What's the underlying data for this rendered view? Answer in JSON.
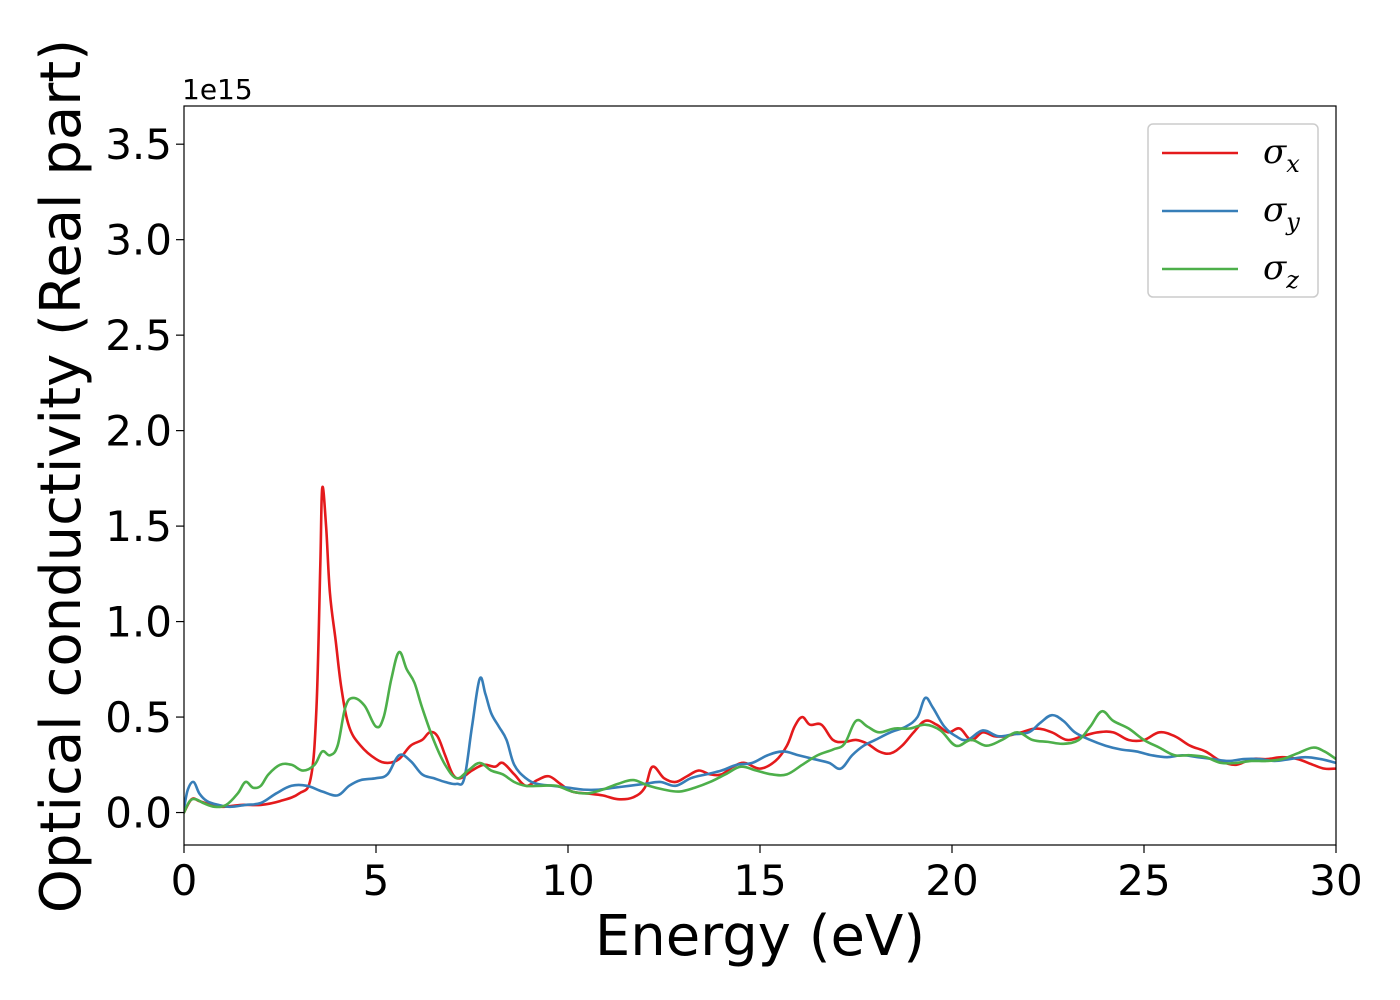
{
  "chart_data": {
    "type": "line",
    "title": "",
    "xlabel": "Energy (eV)",
    "ylabel": "Optical conductivity (Real part)",
    "y_offset_label": "1e15",
    "xlim": [
      0,
      30
    ],
    "ylim": [
      -0.17,
      3.7
    ],
    "xticks": [
      0,
      5,
      10,
      15,
      20,
      25,
      30
    ],
    "xtick_labels": [
      "0",
      "5",
      "10",
      "15",
      "20",
      "25",
      "30"
    ],
    "yticks": [
      0.0,
      0.5,
      1.0,
      1.5,
      2.0,
      2.5,
      3.0,
      3.5
    ],
    "ytick_labels": [
      "0.0",
      "0.5",
      "1.0",
      "1.5",
      "2.0",
      "2.5",
      "3.0",
      "3.5"
    ],
    "grid": false,
    "legend_position": "top-right",
    "series": [
      {
        "name": "σx",
        "symbol": "σ",
        "subscript": "x",
        "color": "#e41a1c",
        "x": [
          0,
          0.2,
          0.4,
          0.7,
          1.0,
          1.5,
          2.0,
          2.5,
          3.0,
          3.3,
          3.45,
          3.55,
          3.6,
          3.7,
          3.8,
          3.95,
          4.1,
          4.3,
          4.6,
          5.0,
          5.3,
          5.6,
          5.9,
          6.2,
          6.4,
          6.6,
          6.8,
          7.0,
          7.2,
          7.5,
          7.8,
          8.1,
          8.3,
          8.6,
          8.9,
          9.2,
          9.5,
          9.8,
          10.1,
          10.5,
          10.9,
          11.3,
          11.7,
          12.0,
          12.2,
          12.5,
          12.8,
          13.1,
          13.4,
          13.7,
          14.0,
          14.3,
          14.6,
          15.0,
          15.4,
          15.7,
          15.9,
          16.1,
          16.3,
          16.6,
          16.9,
          17.2,
          17.5,
          17.8,
          18.1,
          18.4,
          18.7,
          19.0,
          19.3,
          19.6,
          19.9,
          20.2,
          20.5,
          20.8,
          21.1,
          21.4,
          21.8,
          22.2,
          22.6,
          23.0,
          23.4,
          23.8,
          24.2,
          24.6,
          25.0,
          25.4,
          25.8,
          26.2,
          26.6,
          27.0,
          27.4,
          27.8,
          28.2,
          28.6,
          29.0,
          29.4,
          29.7,
          30.0
        ],
        "y": [
          0.0,
          0.07,
          0.06,
          0.04,
          0.03,
          0.04,
          0.04,
          0.06,
          0.1,
          0.18,
          0.55,
          1.3,
          1.7,
          1.5,
          1.15,
          0.9,
          0.65,
          0.45,
          0.35,
          0.28,
          0.26,
          0.28,
          0.35,
          0.38,
          0.42,
          0.4,
          0.3,
          0.2,
          0.18,
          0.22,
          0.25,
          0.24,
          0.26,
          0.2,
          0.14,
          0.17,
          0.19,
          0.15,
          0.11,
          0.1,
          0.09,
          0.07,
          0.08,
          0.13,
          0.24,
          0.18,
          0.16,
          0.19,
          0.22,
          0.2,
          0.2,
          0.24,
          0.26,
          0.23,
          0.27,
          0.35,
          0.45,
          0.5,
          0.46,
          0.46,
          0.38,
          0.37,
          0.38,
          0.36,
          0.32,
          0.31,
          0.35,
          0.42,
          0.48,
          0.46,
          0.42,
          0.44,
          0.38,
          0.42,
          0.4,
          0.4,
          0.42,
          0.44,
          0.42,
          0.38,
          0.4,
          0.42,
          0.42,
          0.38,
          0.38,
          0.42,
          0.4,
          0.35,
          0.32,
          0.27,
          0.25,
          0.28,
          0.28,
          0.29,
          0.28,
          0.25,
          0.23,
          0.23
        ]
      },
      {
        "name": "σy",
        "symbol": "σ",
        "subscript": "y",
        "color": "#377eb8",
        "x": [
          0,
          0.1,
          0.25,
          0.4,
          0.6,
          0.9,
          1.2,
          1.6,
          2.0,
          2.4,
          2.8,
          3.2,
          3.6,
          4.0,
          4.3,
          4.6,
          5.0,
          5.3,
          5.6,
          5.9,
          6.2,
          6.5,
          6.8,
          7.1,
          7.3,
          7.5,
          7.7,
          7.85,
          8.0,
          8.2,
          8.4,
          8.6,
          8.9,
          9.2,
          9.6,
          10.0,
          10.4,
          10.8,
          11.2,
          11.6,
          12.0,
          12.4,
          12.8,
          13.2,
          13.6,
          14.0,
          14.4,
          14.8,
          15.2,
          15.6,
          16.0,
          16.4,
          16.8,
          17.1,
          17.4,
          17.7,
          18.0,
          18.4,
          18.8,
          19.1,
          19.3,
          19.5,
          19.8,
          20.1,
          20.4,
          20.8,
          21.2,
          21.6,
          22.0,
          22.3,
          22.6,
          22.9,
          23.2,
          23.6,
          24.0,
          24.4,
          24.8,
          25.2,
          25.6,
          26.0,
          26.4,
          26.8,
          27.2,
          27.6,
          28.0,
          28.4,
          28.8,
          29.2,
          29.6,
          30.0
        ],
        "y": [
          0.02,
          0.12,
          0.16,
          0.1,
          0.06,
          0.04,
          0.03,
          0.04,
          0.05,
          0.1,
          0.14,
          0.14,
          0.11,
          0.09,
          0.14,
          0.17,
          0.18,
          0.2,
          0.3,
          0.27,
          0.2,
          0.18,
          0.16,
          0.15,
          0.18,
          0.45,
          0.7,
          0.62,
          0.52,
          0.45,
          0.38,
          0.25,
          0.18,
          0.15,
          0.14,
          0.13,
          0.12,
          0.12,
          0.13,
          0.14,
          0.15,
          0.16,
          0.14,
          0.18,
          0.2,
          0.22,
          0.25,
          0.26,
          0.3,
          0.32,
          0.3,
          0.28,
          0.26,
          0.23,
          0.3,
          0.35,
          0.38,
          0.42,
          0.45,
          0.5,
          0.6,
          0.55,
          0.45,
          0.4,
          0.38,
          0.43,
          0.4,
          0.41,
          0.42,
          0.47,
          0.51,
          0.48,
          0.42,
          0.38,
          0.35,
          0.33,
          0.32,
          0.3,
          0.29,
          0.3,
          0.29,
          0.28,
          0.27,
          0.28,
          0.28,
          0.27,
          0.28,
          0.29,
          0.28,
          0.26
        ]
      },
      {
        "name": "σz",
        "symbol": "σ",
        "subscript": "z",
        "color": "#4daf4a",
        "x": [
          0,
          0.15,
          0.3,
          0.5,
          0.8,
          1.1,
          1.4,
          1.6,
          1.8,
          2.0,
          2.2,
          2.5,
          2.8,
          3.1,
          3.4,
          3.6,
          3.8,
          4.0,
          4.2,
          4.4,
          4.7,
          5.0,
          5.2,
          5.4,
          5.6,
          5.8,
          6.0,
          6.2,
          6.5,
          6.8,
          7.1,
          7.4,
          7.7,
          8.0,
          8.3,
          8.6,
          8.9,
          9.3,
          9.7,
          10.1,
          10.5,
          10.9,
          11.3,
          11.7,
          12.1,
          12.5,
          12.9,
          13.3,
          13.7,
          14.1,
          14.5,
          14.9,
          15.3,
          15.7,
          16.1,
          16.5,
          16.9,
          17.2,
          17.5,
          17.8,
          18.1,
          18.5,
          18.9,
          19.3,
          19.7,
          20.1,
          20.5,
          20.9,
          21.3,
          21.7,
          22.1,
          22.5,
          22.9,
          23.3,
          23.6,
          23.9,
          24.2,
          24.6,
          25.0,
          25.4,
          25.8,
          26.2,
          26.6,
          27.0,
          27.4,
          27.8,
          28.2,
          28.6,
          29.0,
          29.4,
          29.7,
          30.0
        ],
        "y": [
          0.0,
          0.06,
          0.07,
          0.05,
          0.03,
          0.04,
          0.1,
          0.16,
          0.13,
          0.14,
          0.2,
          0.25,
          0.25,
          0.22,
          0.25,
          0.32,
          0.3,
          0.35,
          0.55,
          0.6,
          0.56,
          0.45,
          0.5,
          0.7,
          0.84,
          0.75,
          0.68,
          0.55,
          0.38,
          0.25,
          0.18,
          0.22,
          0.26,
          0.22,
          0.2,
          0.16,
          0.14,
          0.14,
          0.14,
          0.11,
          0.1,
          0.12,
          0.15,
          0.17,
          0.14,
          0.12,
          0.11,
          0.13,
          0.16,
          0.2,
          0.24,
          0.22,
          0.2,
          0.2,
          0.25,
          0.3,
          0.33,
          0.36,
          0.48,
          0.45,
          0.42,
          0.44,
          0.44,
          0.46,
          0.43,
          0.35,
          0.38,
          0.35,
          0.38,
          0.42,
          0.38,
          0.37,
          0.36,
          0.38,
          0.45,
          0.53,
          0.48,
          0.44,
          0.38,
          0.34,
          0.3,
          0.3,
          0.29,
          0.26,
          0.26,
          0.27,
          0.27,
          0.28,
          0.31,
          0.34,
          0.32,
          0.28
        ]
      }
    ]
  }
}
